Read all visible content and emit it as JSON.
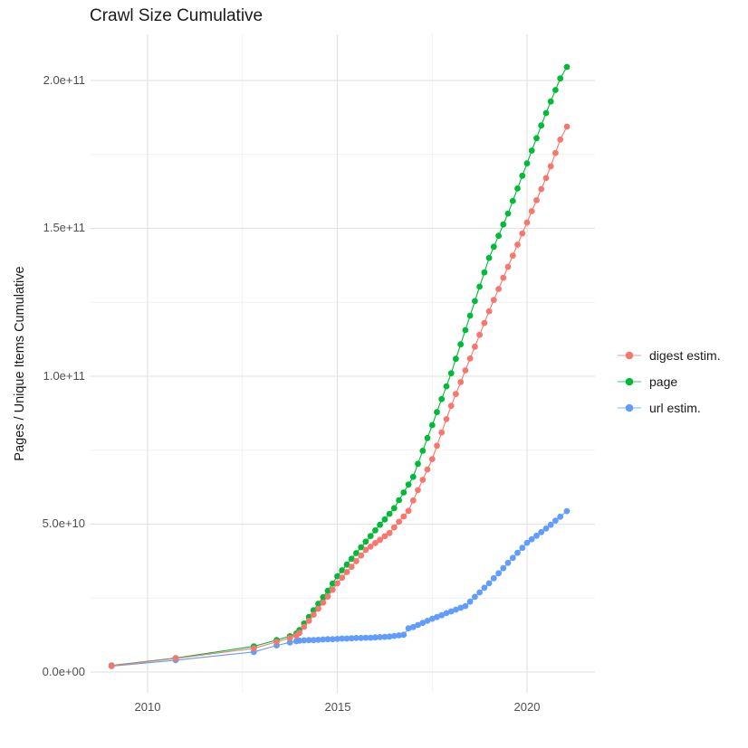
{
  "chart_data": {
    "type": "line",
    "title": "Crawl Size Cumulative",
    "ylabel": "Pages / Unique Items Cumulative",
    "xlabel": "",
    "grid": true,
    "legend_position": "right",
    "value_unit": "billions (1e9) of items; point values below are in 1e9",
    "x_range": [
      2008.5,
      2021.8
    ],
    "y_range_e9": [
      0,
      215
    ],
    "x_axis": {
      "tick_values": [
        2010,
        2015,
        2020
      ],
      "tick_labels": [
        "2010",
        "2015",
        "2020"
      ],
      "minor_gridlines": [
        2012.5,
        2017.5
      ]
    },
    "y_axis": {
      "tick_values_e9": [
        200,
        150,
        100,
        50,
        0
      ],
      "tick_labels": [
        "2.0e+11",
        "1.5e+11",
        "1.0e+11",
        "5.0e+10",
        "0.0e+00"
      ],
      "minor_gridlines_e9": [
        25,
        75,
        125,
        175
      ]
    },
    "series": [
      {
        "name": "digest estim.",
        "color": "#F8766D",
        "points": [
          [
            2009.05,
            2.1
          ],
          [
            2010.74,
            4.6
          ],
          [
            2012.8,
            8.0
          ],
          [
            2013.4,
            10.2
          ],
          [
            2013.75,
            11.5
          ],
          [
            2013.92,
            12.3
          ],
          [
            2014,
            13.2
          ],
          [
            2014.125,
            15.3
          ],
          [
            2014.25,
            17.3
          ],
          [
            2014.375,
            19.4
          ],
          [
            2014.5,
            21.4
          ],
          [
            2014.625,
            23.5
          ],
          [
            2014.75,
            25.5
          ],
          [
            2014.875,
            27.8
          ],
          [
            2015,
            30
          ],
          [
            2015.125,
            31.9
          ],
          [
            2015.25,
            33.8
          ],
          [
            2015.375,
            35.6
          ],
          [
            2015.5,
            37.5
          ],
          [
            2015.625,
            39.4
          ],
          [
            2015.75,
            41.3
          ],
          [
            2015.875,
            42.4
          ],
          [
            2016,
            43.6
          ],
          [
            2016.125,
            44.7
          ],
          [
            2016.25,
            45.9
          ],
          [
            2016.375,
            47
          ],
          [
            2016.5,
            48.9
          ],
          [
            2016.625,
            50.8
          ],
          [
            2016.75,
            52.6
          ],
          [
            2016.875,
            54.5
          ],
          [
            2017,
            58
          ],
          [
            2017.125,
            61.5
          ],
          [
            2017.25,
            65
          ],
          [
            2017.375,
            68.5
          ],
          [
            2017.5,
            72
          ],
          [
            2017.625,
            76.5
          ],
          [
            2017.75,
            81
          ],
          [
            2017.875,
            85.5
          ],
          [
            2018,
            90
          ],
          [
            2018.125,
            94
          ],
          [
            2018.25,
            98
          ],
          [
            2018.375,
            102
          ],
          [
            2018.5,
            106
          ],
          [
            2018.625,
            110
          ],
          [
            2018.75,
            114
          ],
          [
            2018.875,
            118
          ],
          [
            2019,
            122
          ],
          [
            2019.125,
            125.8
          ],
          [
            2019.25,
            129.5
          ],
          [
            2019.375,
            133.3
          ],
          [
            2019.5,
            137
          ],
          [
            2019.625,
            140.8
          ],
          [
            2019.75,
            144.5
          ],
          [
            2019.875,
            148.3
          ],
          [
            2020,
            152
          ],
          [
            2020.125,
            155.8
          ],
          [
            2020.25,
            159.5
          ],
          [
            2020.375,
            163.3
          ],
          [
            2020.5,
            167
          ],
          [
            2020.625,
            171
          ],
          [
            2020.75,
            175.5
          ],
          [
            2020.875,
            180
          ],
          [
            2021.05,
            184.4
          ]
        ]
      },
      {
        "name": "page",
        "color": "#00BA38",
        "points": [
          [
            2009.05,
            2.2
          ],
          [
            2010.74,
            4.7
          ],
          [
            2012.8,
            8.7
          ],
          [
            2013.4,
            10.8
          ],
          [
            2013.75,
            12.1
          ],
          [
            2013.92,
            13
          ],
          [
            2014,
            14.2
          ],
          [
            2014.125,
            16.4
          ],
          [
            2014.25,
            18.6
          ],
          [
            2014.375,
            20.9
          ],
          [
            2014.5,
            23.1
          ],
          [
            2014.625,
            25.3
          ],
          [
            2014.75,
            27.5
          ],
          [
            2014.875,
            29.9
          ],
          [
            2015,
            32.4
          ],
          [
            2015.125,
            34.4
          ],
          [
            2015.25,
            36.3
          ],
          [
            2015.375,
            38.3
          ],
          [
            2015.5,
            40.2
          ],
          [
            2015.625,
            42.2
          ],
          [
            2015.75,
            44.1
          ],
          [
            2015.875,
            46
          ],
          [
            2016,
            47.9
          ],
          [
            2016.125,
            49.8
          ],
          [
            2016.25,
            51.6
          ],
          [
            2016.375,
            53.5
          ],
          [
            2016.5,
            55.4
          ],
          [
            2016.625,
            58.1
          ],
          [
            2016.75,
            60.7
          ],
          [
            2016.875,
            63.4
          ],
          [
            2017,
            66
          ],
          [
            2017.125,
            70.4
          ],
          [
            2017.25,
            74.8
          ],
          [
            2017.375,
            79.1
          ],
          [
            2017.5,
            83.5
          ],
          [
            2017.625,
            87.9
          ],
          [
            2017.75,
            92.3
          ],
          [
            2017.875,
            96.6
          ],
          [
            2018,
            101
          ],
          [
            2018.125,
            105.9
          ],
          [
            2018.25,
            110.8
          ],
          [
            2018.375,
            115.6
          ],
          [
            2018.5,
            120.5
          ],
          [
            2018.625,
            125.4
          ],
          [
            2018.75,
            130.3
          ],
          [
            2018.875,
            135.1
          ],
          [
            2019,
            140
          ],
          [
            2019.125,
            143.8
          ],
          [
            2019.25,
            147.5
          ],
          [
            2019.375,
            151.3
          ],
          [
            2019.5,
            155
          ],
          [
            2019.625,
            159.3
          ],
          [
            2019.75,
            163.5
          ],
          [
            2019.875,
            167.8
          ],
          [
            2020,
            172
          ],
          [
            2020.125,
            176.3
          ],
          [
            2020.25,
            180.5
          ],
          [
            2020.375,
            184.8
          ],
          [
            2020.5,
            189
          ],
          [
            2020.625,
            192.9
          ],
          [
            2020.75,
            196.8
          ],
          [
            2020.875,
            200.7
          ],
          [
            2021.05,
            204.6
          ]
        ]
      },
      {
        "name": "url estim.",
        "color": "#619CFF",
        "points": [
          [
            2009.05,
            2
          ],
          [
            2010.74,
            4
          ],
          [
            2012.8,
            6.8
          ],
          [
            2013.4,
            9
          ],
          [
            2013.75,
            10
          ],
          [
            2013.92,
            10.4
          ],
          [
            2014,
            10.6
          ],
          [
            2014.125,
            10.7
          ],
          [
            2014.25,
            10.8
          ],
          [
            2014.375,
            10.8
          ],
          [
            2014.5,
            10.9
          ],
          [
            2014.625,
            11
          ],
          [
            2014.75,
            11.1
          ],
          [
            2014.875,
            11.1
          ],
          [
            2015,
            11.2
          ],
          [
            2015.125,
            11.3
          ],
          [
            2015.25,
            11.3
          ],
          [
            2015.375,
            11.4
          ],
          [
            2015.5,
            11.5
          ],
          [
            2015.625,
            11.5
          ],
          [
            2015.75,
            11.6
          ],
          [
            2015.875,
            11.6
          ],
          [
            2016,
            11.7
          ],
          [
            2016.125,
            11.8
          ],
          [
            2016.25,
            11.9
          ],
          [
            2016.375,
            12
          ],
          [
            2016.5,
            12.2
          ],
          [
            2016.625,
            12.4
          ],
          [
            2016.75,
            12.6
          ],
          [
            2016.875,
            14.8
          ],
          [
            2017,
            15.2
          ],
          [
            2017.125,
            15.9
          ],
          [
            2017.25,
            16.6
          ],
          [
            2017.375,
            17.3
          ],
          [
            2017.5,
            18
          ],
          [
            2017.625,
            18.6
          ],
          [
            2017.75,
            19.2
          ],
          [
            2017.875,
            19.9
          ],
          [
            2018,
            20.5
          ],
          [
            2018.125,
            21.1
          ],
          [
            2018.25,
            21.7
          ],
          [
            2018.375,
            22.3
          ],
          [
            2018.5,
            23.8
          ],
          [
            2018.625,
            25.4
          ],
          [
            2018.75,
            26.9
          ],
          [
            2018.875,
            28.5
          ],
          [
            2019,
            30
          ],
          [
            2019.125,
            31.7
          ],
          [
            2019.25,
            33.4
          ],
          [
            2019.375,
            35.1
          ],
          [
            2019.5,
            36.9
          ],
          [
            2019.625,
            38.6
          ],
          [
            2019.75,
            40.3
          ],
          [
            2019.875,
            42
          ],
          [
            2020,
            43.7
          ],
          [
            2020.125,
            44.9
          ],
          [
            2020.25,
            46.1
          ],
          [
            2020.375,
            47.3
          ],
          [
            2020.5,
            48.5
          ],
          [
            2020.625,
            49.8
          ],
          [
            2020.75,
            51.2
          ],
          [
            2020.875,
            52.5
          ],
          [
            2021.05,
            54.4
          ]
        ]
      }
    ]
  }
}
